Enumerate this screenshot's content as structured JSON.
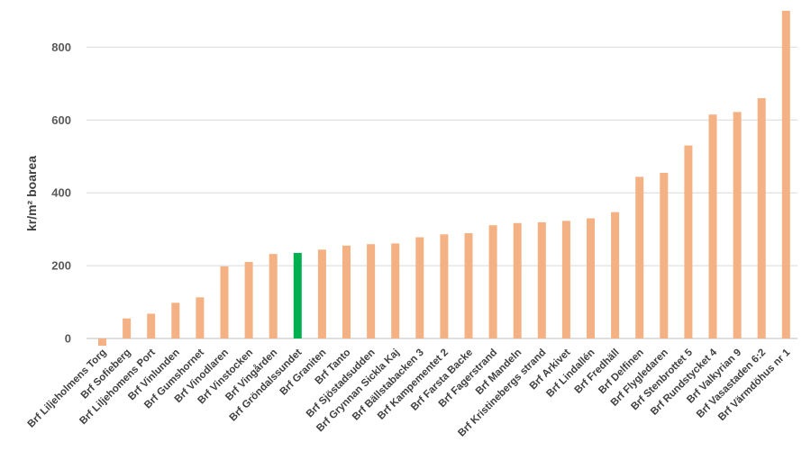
{
  "chart_data": {
    "type": "bar",
    "title": "",
    "xlabel": "",
    "ylabel": "kr/m² boarea",
    "ylim": [
      -50,
      950
    ],
    "yticks": [
      0,
      200,
      400,
      600,
      800
    ],
    "grid": true,
    "legend": "none",
    "colors": {
      "default": "#f4b183",
      "highlight": "#00b050",
      "grid": "#d9d9d9",
      "axis": "#bfbfbf"
    },
    "highlight_index": 8,
    "categories": [
      "Brf Liljeholmens Torg",
      "Brf Sofieberg",
      "Brf Liljehomens Port",
      "Brf Vinlunden",
      "Brf Gumshornet",
      "Brf Vinodlaren",
      "Brf Vinstocken",
      "Brf Vingården",
      "Brf Gröndalssundet",
      "Brf Graniten",
      "Brf Tanto",
      "Brf Sjöstadsudden",
      "Brf Grynnan Sickla Kaj",
      "Brf Bällstabacken 3",
      "Brf Kampementet 2",
      "Brf Farsta Backe",
      "Brf Fagerstrand",
      "Brf Mandeln",
      "Brf Kristinebergs strand",
      "Brf Arkivet",
      "Brf Lindallén",
      "Brf Fredhäll",
      "Brf Delfinen",
      "Brf Flygledaren",
      "Brf Stenbrottet 5",
      "Brf Rundstycket 4",
      "Brf Valkyrian 9",
      "Brf Vasastaden 6:2",
      "Brf Värmdöhus nr 1"
    ],
    "values": [
      -20,
      55,
      68,
      98,
      113,
      198,
      210,
      232,
      235,
      244,
      255,
      259,
      261,
      278,
      286,
      289,
      311,
      317,
      319,
      323,
      330,
      347,
      444,
      455,
      530,
      615,
      622,
      660,
      900
    ]
  }
}
